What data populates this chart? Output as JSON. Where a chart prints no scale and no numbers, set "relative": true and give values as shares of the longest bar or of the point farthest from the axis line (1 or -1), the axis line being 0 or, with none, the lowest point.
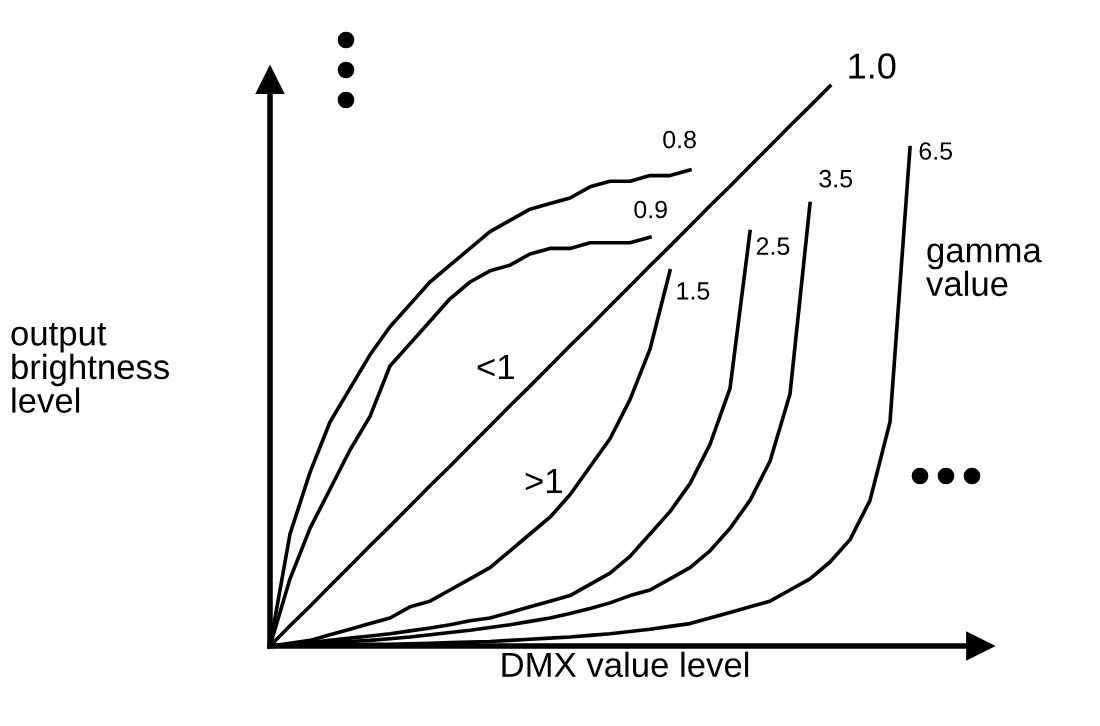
{
  "chart_data": {
    "type": "line",
    "relative": true,
    "xlabel": "DMX value level",
    "ylabel": "output\nbrightness\nlevel",
    "categories": [
      null,
      null,
      null,
      null,
      null,
      null,
      null,
      null,
      null,
      null,
      null,
      null,
      null,
      null,
      null,
      null,
      null,
      null,
      null,
      null,
      null,
      null,
      null,
      null,
      null,
      null,
      null,
      null,
      null,
      null,
      null,
      null,
      null
    ],
    "series": [
      {
        "name": "0.8",
        "color": "#000000",
        "values": [
          0,
          0.2,
          0.31,
          0.4,
          0.46,
          0.52,
          0.57,
          0.61,
          0.65,
          0.68,
          0.71,
          0.74,
          0.76,
          0.78,
          0.79,
          0.8,
          0.82,
          0.83,
          0.83,
          0.84,
          0.84,
          0.85,
          null,
          null,
          null,
          null,
          null,
          null,
          null,
          null,
          null,
          null,
          null
        ]
      },
      {
        "name": "0.9",
        "color": "#000000",
        "values": [
          0,
          0.12,
          0.21,
          0.28,
          0.35,
          0.41,
          0.5,
          0.54,
          0.58,
          0.62,
          0.65,
          0.67,
          0.68,
          0.7,
          0.71,
          0.71,
          0.72,
          0.72,
          0.72,
          0.73,
          null,
          null,
          null,
          null,
          null,
          null,
          null,
          null,
          null,
          null,
          null,
          null,
          null
        ]
      },
      {
        "name": "1.0",
        "color": "#000000",
        "values": [
          0,
          0.036,
          0.071,
          0.107,
          0.143,
          0.179,
          0.214,
          0.25,
          0.286,
          0.321,
          0.357,
          0.393,
          0.429,
          0.464,
          0.5,
          0.536,
          0.571,
          0.607,
          0.643,
          0.679,
          0.714,
          0.75,
          0.786,
          0.821,
          0.857,
          0.893,
          0.929,
          0.964,
          1,
          null,
          null,
          null,
          null
        ]
      },
      {
        "name": "1.5",
        "color": "#000000",
        "values": [
          0,
          0.005,
          0.01,
          0.02,
          0.03,
          0.04,
          0.05,
          0.07,
          0.08,
          0.1,
          0.12,
          0.14,
          0.17,
          0.2,
          0.23,
          0.27,
          0.32,
          0.37,
          0.44,
          0.53,
          0.67,
          null,
          null,
          null,
          null,
          null,
          null,
          null,
          null,
          null,
          null,
          null,
          null
        ]
      },
      {
        "name": "2.5",
        "color": "#000000",
        "values": [
          0,
          0.003,
          0.006,
          0.01,
          0.014,
          0.018,
          0.022,
          0.027,
          0.032,
          0.038,
          0.045,
          0.05,
          0.06,
          0.07,
          0.08,
          0.09,
          0.11,
          0.13,
          0.16,
          0.2,
          0.24,
          0.29,
          0.36,
          0.46,
          0.74,
          null,
          null,
          null,
          null,
          null,
          null,
          null,
          null
        ]
      },
      {
        "name": "3.5",
        "color": "#000000",
        "values": [
          0,
          0.002,
          0.004,
          0.006,
          0.008,
          0.01,
          0.013,
          0.016,
          0.02,
          0.024,
          0.028,
          0.033,
          0.038,
          0.044,
          0.05,
          0.058,
          0.067,
          0.077,
          0.09,
          0.1,
          0.12,
          0.14,
          0.17,
          0.21,
          0.26,
          0.33,
          0.45,
          0.79,
          null,
          null,
          null,
          null,
          null
        ]
      },
      {
        "name": "6.5",
        "color": "#000000",
        "values": [
          0,
          0.001,
          0.001,
          0.002,
          0.002,
          0.003,
          0.003,
          0.004,
          0.005,
          0.006,
          0.007,
          0.008,
          0.01,
          0.012,
          0.014,
          0.016,
          0.019,
          0.022,
          0.026,
          0.03,
          0.035,
          0.04,
          0.05,
          0.06,
          0.07,
          0.08,
          0.1,
          0.12,
          0.15,
          0.19,
          0.26,
          0.4,
          0.89
        ]
      }
    ],
    "annotations": [
      "gamma\nvalue",
      "<1",
      ">1"
    ],
    "marker": "none",
    "line_style": "solid"
  }
}
